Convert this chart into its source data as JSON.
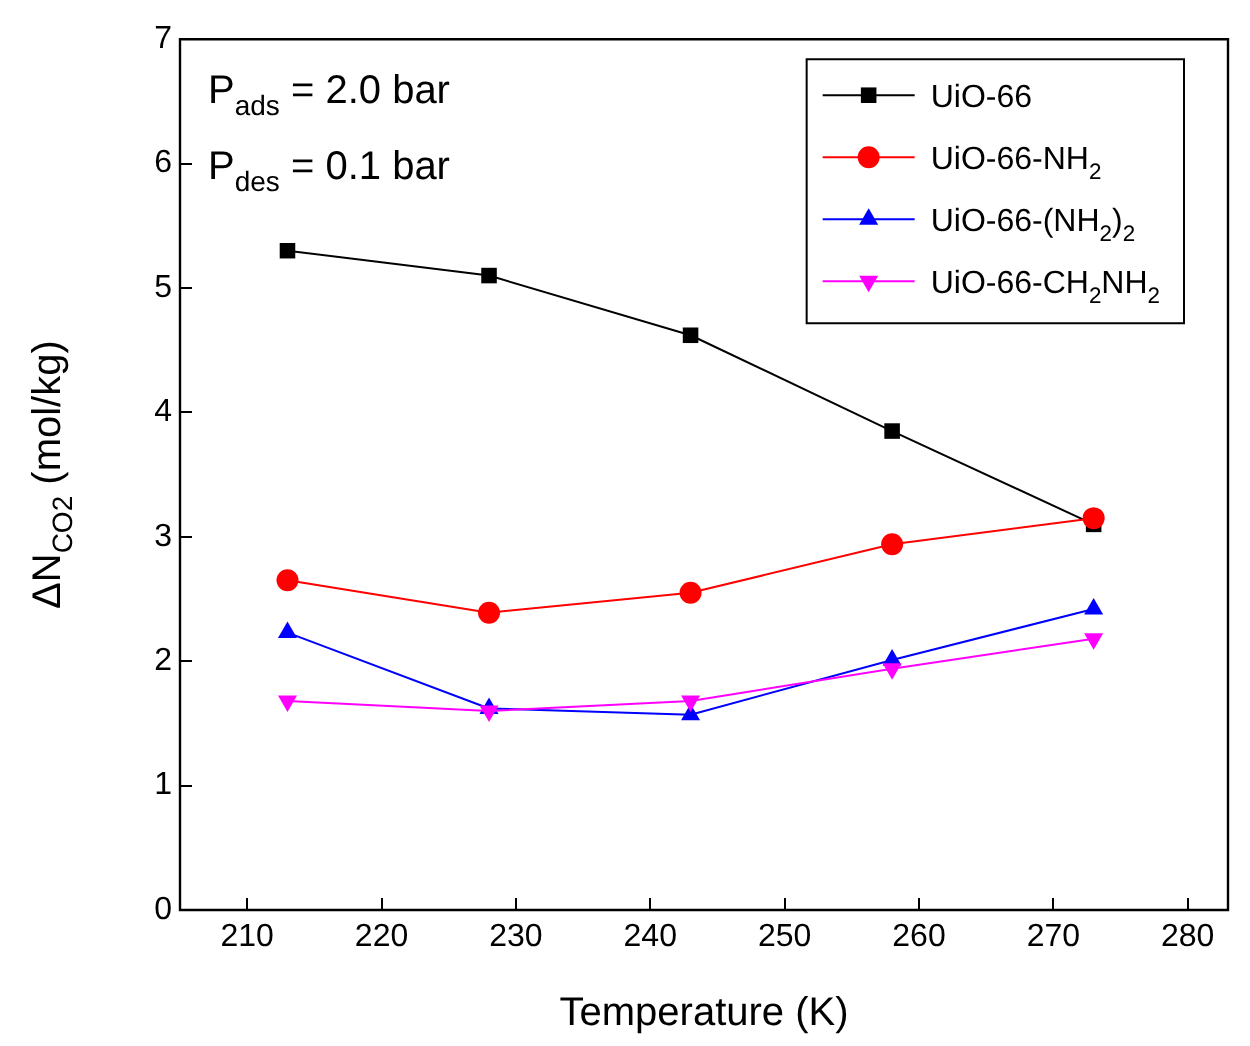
{
  "chart_data": {
    "type": "line",
    "xlabel": "Temperature (K)",
    "ylabel": "ΔN$_{CO2}$ (mol/kg)",
    "x": [
      213,
      228,
      243,
      258,
      273
    ],
    "series": [
      {
        "name": "UiO-66",
        "color": "#000000",
        "marker": "square",
        "values": [
          5.3,
          5.1,
          4.62,
          3.85,
          3.1
        ]
      },
      {
        "name": "UiO-66-NH$_{2}$",
        "color": "#ff0000",
        "marker": "circle",
        "values": [
          2.65,
          2.39,
          2.55,
          2.94,
          3.15
        ]
      },
      {
        "name": "UiO-66-(NH$_{2}$)$_{2}$",
        "color": "#0000ff",
        "marker": "triangle",
        "values": [
          2.23,
          1.62,
          1.57,
          2.01,
          2.42
        ]
      },
      {
        "name": "UiO-66-CH$_{2}$NH$_{2}$",
        "color": "#ff00ff",
        "marker": "triangle-down",
        "values": [
          1.68,
          1.6,
          1.68,
          1.94,
          2.18
        ]
      }
    ],
    "xlim": [
      205,
      283
    ],
    "xticks": [
      210,
      220,
      230,
      240,
      250,
      260,
      270,
      280
    ],
    "ylim": [
      0,
      7
    ],
    "yticks": [
      0,
      1,
      2,
      3,
      4,
      5,
      6,
      7
    ],
    "annotations": [
      "P$_{ads}$ = 2.0 bar",
      "P$_{des}$ = 0.1 bar"
    ],
    "legend": "top right",
    "grid": false,
    "line_style": "solid"
  }
}
